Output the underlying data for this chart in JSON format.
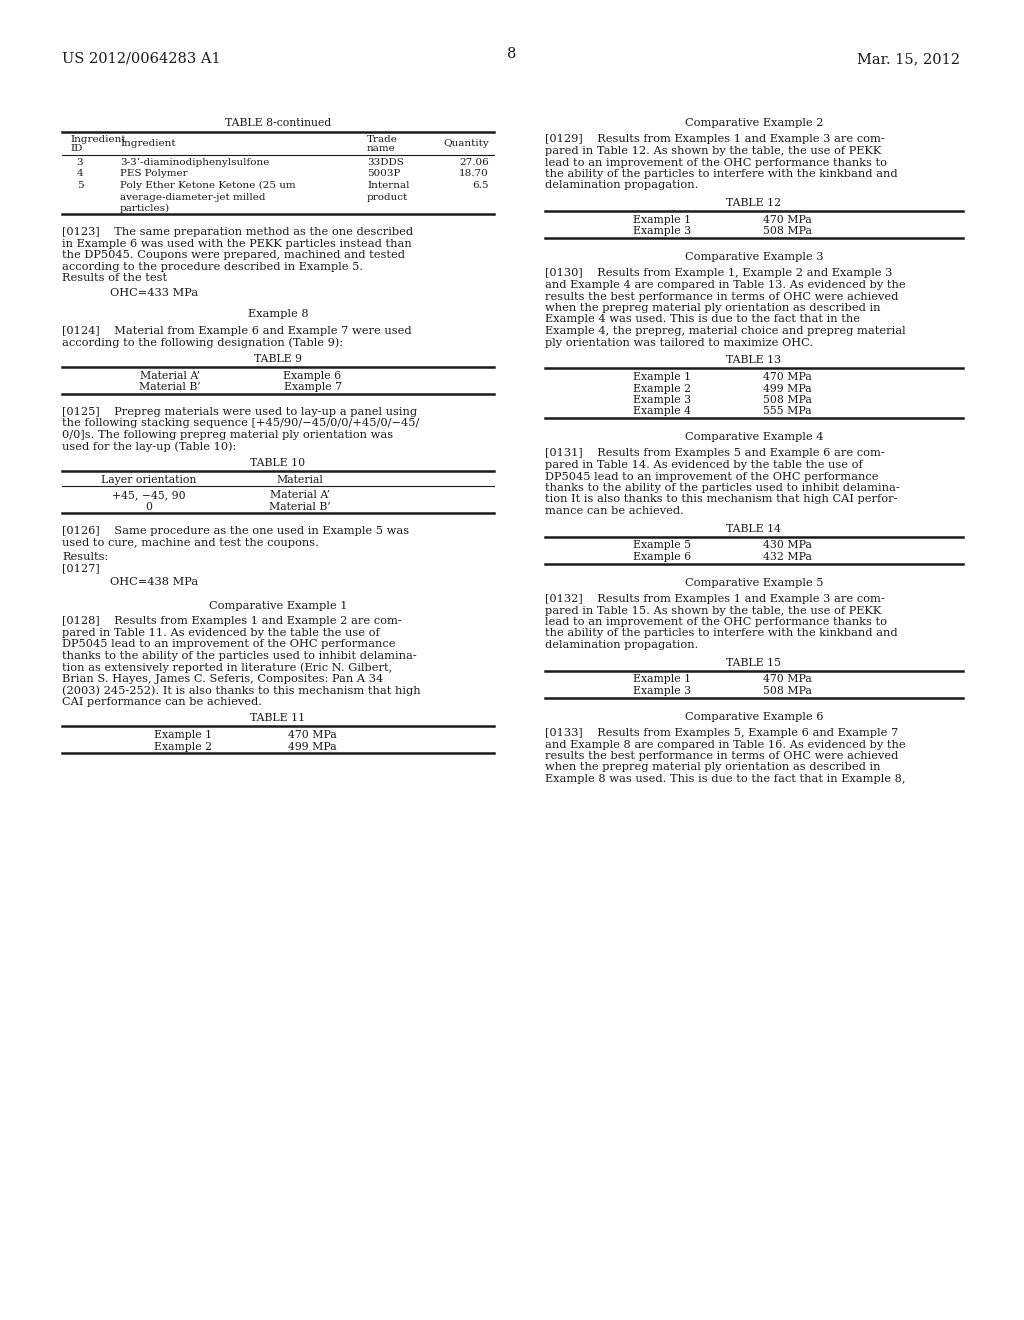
{
  "bg_color": "#ffffff",
  "header_left": "US 2012/0064283 A1",
  "header_right": "Mar. 15, 2012",
  "page_number": "8",
  "left_col": {
    "table8_continued": {
      "title": "TABLE 8-continued",
      "headers": [
        "Ingredient\nID",
        "Ingredient",
        "Trade\nname",
        "Quantity"
      ],
      "rows": [
        [
          "3",
          "3-3’-diaminodiphenylsulfone",
          "33DDS",
          "27.06"
        ],
        [
          "4",
          "PES Polymer",
          "5003P",
          "18.70"
        ],
        [
          "5",
          "Poly Ether Ketone Ketone (25 um\naverage-diameter-jet milled\nparticles)",
          "Internal\nproduct",
          "6.5"
        ]
      ]
    },
    "para0123_lines": [
      "[0123]    The same preparation method as the one described",
      "in Example 6 was used with the PEKK particles instead than",
      "the DP5045. Coupons were prepared, machined and tested",
      "according to the procedure described in Example 5.",
      "Results of the test"
    ],
    "ohc_result1": "OHC=433 MPa",
    "example8_title": "Example 8",
    "para0124_lines": [
      "[0124]    Material from Example 6 and Example 7 were used",
      "according to the following designation (Table 9):"
    ],
    "table9": {
      "title": "TABLE 9",
      "rows": [
        [
          "Material A’",
          "Example 6"
        ],
        [
          "Material B’",
          "Example 7"
        ]
      ]
    },
    "para0125_lines": [
      "[0125]    Prepreg materials were used to lay-up a panel using",
      "the following stacking sequence [+45/90/−45/0/0/+45/0/−45/",
      "0/0]s. The following prepreg material ply orientation was",
      "used for the lay-up (Table 10):"
    ],
    "table10": {
      "title": "TABLE 10",
      "headers": [
        "Layer orientation",
        "Material"
      ],
      "rows": [
        [
          "+45, −45, 90",
          "Material A’"
        ],
        [
          "0",
          "Material B’"
        ]
      ]
    },
    "para0126_lines": [
      "[0126]    Same procedure as the one used in Example 5 was",
      "used to cure, machine and test the coupons."
    ],
    "results": "Results:",
    "para0127": "[0127]",
    "ohc_result2": "OHC=438 MPa",
    "comp_ex1_title": "Comparative Example 1",
    "para0128_lines": [
      "[0128]    Results from Examples 1 and Example 2 are com-",
      "pared in Table 11. As evidenced by the table the use of",
      "DP5045 lead to an improvement of the OHC performance",
      "thanks to the ability of the particles used to inhibit delamina-",
      "tion as extensively reported in literature (Eric N. Gilbert,",
      "Brian S. Hayes, James C. Seferis, Composites: Pan A 34",
      "(2003) 245-252). It is also thanks to this mechanism that high",
      "CAI performance can be achieved."
    ],
    "table11": {
      "title": "TABLE 11",
      "rows": [
        [
          "Example 1",
          "470 MPa"
        ],
        [
          "Example 2",
          "499 MPa"
        ]
      ]
    }
  },
  "right_col": {
    "comp_ex2_title": "Comparative Example 2",
    "para0129_lines": [
      "[0129]    Results from Examples 1 and Example 3 are com-",
      "pared in Table 12. As shown by the table, the use of PEKK",
      "lead to an improvement of the OHC performance thanks to",
      "the ability of the particles to interfere with the kinkband and",
      "delamination propagation."
    ],
    "table12": {
      "title": "TABLE 12",
      "rows": [
        [
          "Example 1",
          "470 MPa"
        ],
        [
          "Example 3",
          "508 MPa"
        ]
      ]
    },
    "comp_ex3_title": "Comparative Example 3",
    "para0130_lines": [
      "[0130]    Results from Example 1, Example 2 and Example 3",
      "and Example 4 are compared in Table 13. As evidenced by the",
      "results the best performance in terms of OHC were achieved",
      "when the prepreg material ply orientation as described in",
      "Example 4 was used. This is due to the fact that in the",
      "Example 4, the prepreg, material choice and prepreg material",
      "ply orientation was tailored to maximize OHC."
    ],
    "table13": {
      "title": "TABLE 13",
      "rows": [
        [
          "Example 1",
          "470 MPa"
        ],
        [
          "Example 2",
          "499 MPa"
        ],
        [
          "Example 3",
          "508 MPa"
        ],
        [
          "Example 4",
          "555 MPa"
        ]
      ]
    },
    "comp_ex4_title": "Comparative Example 4",
    "para0131_lines": [
      "[0131]    Results from Examples 5 and Example 6 are com-",
      "pared in Table 14. As evidenced by the table the use of",
      "DP5045 lead to an improvement of the OHC performance",
      "thanks to the ability of the particles used to inhibit delamina-",
      "tion It is also thanks to this mechanism that high CAI perfor-",
      "mance can be achieved."
    ],
    "table14": {
      "title": "TABLE 14",
      "rows": [
        [
          "Example 5",
          "430 MPa"
        ],
        [
          "Example 6",
          "432 MPa"
        ]
      ]
    },
    "comp_ex5_title": "Comparative Example 5",
    "para0132_lines": [
      "[0132]    Results from Examples 1 and Example 3 are com-",
      "pared in Table 15. As shown by the table, the use of PEKK",
      "lead to an improvement of the OHC performance thanks to",
      "the ability of the particles to interfere with the kinkband and",
      "delamination propagation."
    ],
    "table15": {
      "title": "TABLE 15",
      "rows": [
        [
          "Example 1",
          "470 MPa"
        ],
        [
          "Example 3",
          "508 MPa"
        ]
      ]
    },
    "comp_ex6_title": "Comparative Example 6",
    "para0133_lines": [
      "[0133]    Results from Examples 5, Example 6 and Example 7",
      "and Example 8 are compared in Table 16. As evidenced by the",
      "results the best performance in terms of OHC were achieved",
      "when the prepreg material ply orientation as described in",
      "Example 8 was used. This is due to the fact that in Example 8,"
    ]
  }
}
